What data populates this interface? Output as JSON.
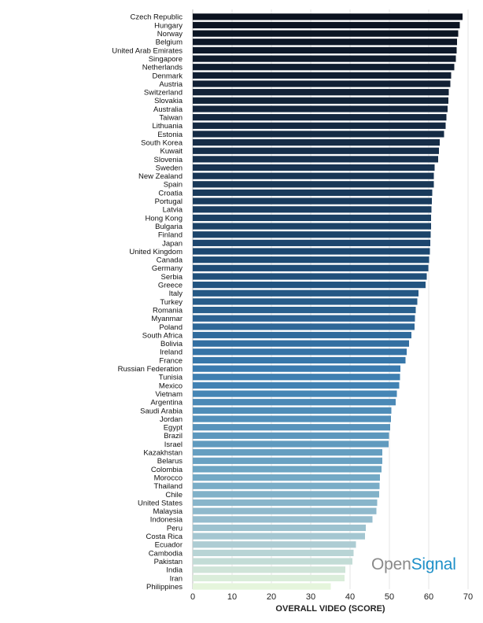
{
  "chart_data": {
    "type": "bar",
    "orientation": "horizontal",
    "title": "",
    "xlabel": "OVERALL VIDEO (SCORE)",
    "ylabel": "",
    "xlim": [
      0,
      70
    ],
    "xticks": [
      0,
      10,
      20,
      30,
      40,
      50,
      60,
      70
    ],
    "grid": true,
    "categories": [
      "Czech Republic",
      "Hungary",
      "Norway",
      "Belgium",
      "United Arab Emirates",
      "Singapore",
      "Netherlands",
      "Denmark",
      "Austria",
      "Switzerland",
      "Slovakia",
      "Australia",
      "Taiwan",
      "Lithuania",
      "Estonia",
      "South Korea",
      "Kuwait",
      "Slovenia",
      "Sweden",
      "New Zealand",
      "Spain",
      "Croatia",
      "Portugal",
      "Latvia",
      "Hong Kong",
      "Bulgaria",
      "Finland",
      "Japan",
      "United Kingdom",
      "Canada",
      "Germany",
      "Serbia",
      "Greece",
      "Italy",
      "Turkey",
      "Romania",
      "Myanmar",
      "Poland",
      "South Africa",
      "Bolivia",
      "Ireland",
      "France",
      "Russian Federation",
      "Tunisia",
      "Mexico",
      "Vietnam",
      "Argentina",
      "Saudi Arabia",
      "Jordan",
      "Egypt",
      "Brazil",
      "Israel",
      "Kazakhstan",
      "Belarus",
      "Colombia",
      "Morocco",
      "Thailand",
      "Chile",
      "United States",
      "Malaysia",
      "Indonesia",
      "Peru",
      "Costa Rica",
      "Ecuador",
      "Cambodia",
      "Pakistan",
      "India",
      "Iran",
      "Philippines"
    ],
    "values": [
      68.6,
      67.9,
      67.5,
      67.2,
      67.1,
      66.9,
      66.5,
      65.7,
      65.5,
      65.1,
      65.0,
      64.8,
      64.5,
      64.3,
      63.9,
      62.8,
      62.6,
      62.4,
      61.5,
      61.3,
      61.3,
      60.9,
      60.8,
      60.7,
      60.6,
      60.6,
      60.5,
      60.4,
      60.3,
      60.1,
      59.9,
      59.5,
      59.2,
      57.4,
      57.1,
      56.7,
      56.5,
      56.4,
      55.6,
      55.0,
      54.4,
      54.1,
      52.8,
      52.7,
      52.5,
      51.9,
      51.6,
      50.5,
      50.4,
      50.2,
      49.9,
      49.8,
      48.2,
      48.2,
      48.0,
      47.6,
      47.5,
      47.4,
      46.9,
      46.7,
      45.7,
      44.0,
      43.8,
      41.5,
      40.9,
      40.6,
      38.8,
      38.6,
      35.1
    ]
  },
  "watermark": {
    "prefix": "Open",
    "suffix": "Signal"
  }
}
